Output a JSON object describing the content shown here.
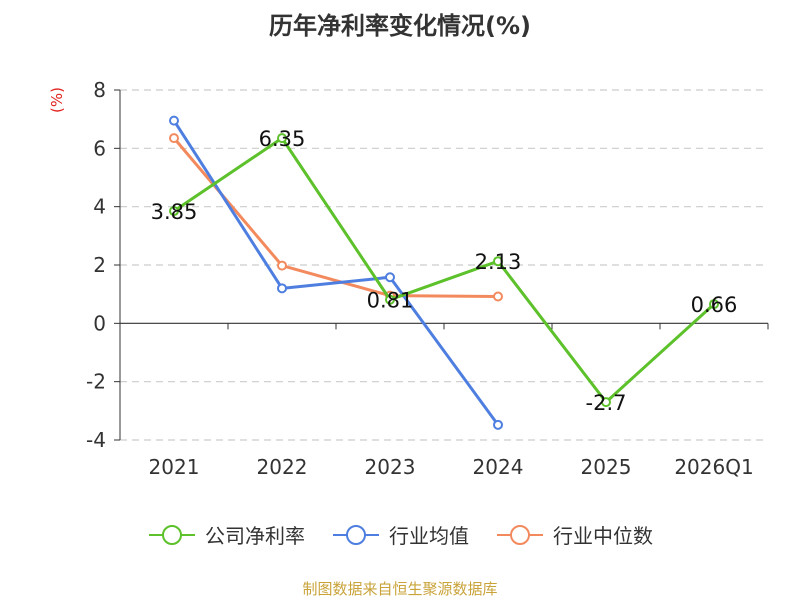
{
  "chart_data": {
    "type": "line",
    "title": "历年净利率变化情况(%)",
    "ylabel": "(%)",
    "xlabel": "",
    "categories": [
      "2021",
      "2022",
      "2023",
      "2024",
      "2025",
      "2026Q1"
    ],
    "ylim": [
      -4,
      8
    ],
    "yticks": [
      -4,
      -2,
      0,
      2,
      4,
      6,
      8
    ],
    "grid": true,
    "legend_position": "bottom",
    "series": [
      {
        "name": "公司净利率",
        "color": "#5cc12a",
        "values": [
          3.85,
          6.35,
          0.81,
          2.13,
          -2.7,
          0.66
        ],
        "labels": [
          "3.85",
          "6.35",
          "0.81",
          "2.13",
          "-2.7",
          "0.66"
        ]
      },
      {
        "name": "行业均值",
        "color": "#4e7fe0",
        "values": [
          6.95,
          1.2,
          1.58,
          -3.48,
          null,
          null
        ]
      },
      {
        "name": "行业中位数",
        "color": "#f38a5e",
        "values": [
          6.35,
          1.98,
          0.95,
          0.92,
          null,
          null
        ]
      }
    ]
  },
  "source": "制图数据来自恒生聚源数据库"
}
